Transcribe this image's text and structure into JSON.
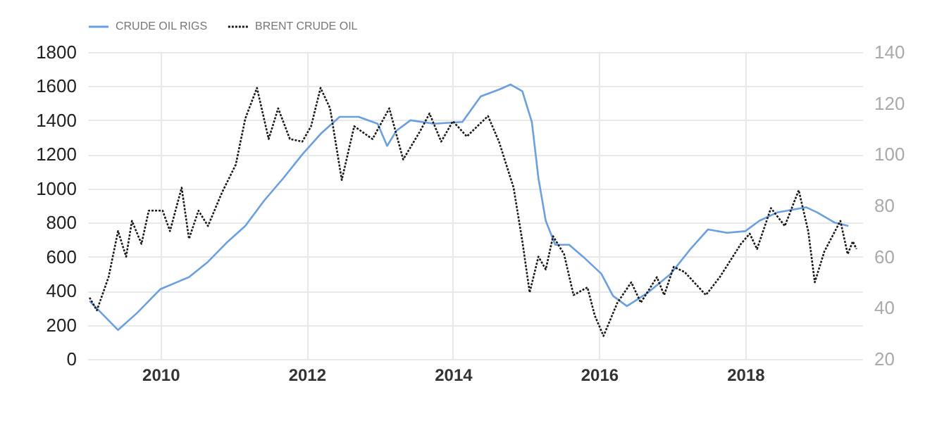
{
  "chart_data": {
    "type": "line",
    "xlim": [
      2009,
      2019.6
    ],
    "xticks": [
      2010,
      2012,
      2014,
      2016,
      2018
    ],
    "ylim": [
      0,
      1800
    ],
    "yticks": [
      0,
      200,
      400,
      600,
      800,
      1000,
      1200,
      1400,
      1600,
      1800
    ],
    "y2lim": [
      20,
      140
    ],
    "y2ticks": [
      20,
      40,
      60,
      80,
      100,
      120,
      140
    ],
    "grid": true,
    "legend": "top left",
    "series": [
      {
        "name": "CRUDE OIL RIGS",
        "color": "#6a9fe0",
        "line_style": "solid",
        "x": [
          2009.03,
          2009.42,
          2009.68,
          2010.0,
          2010.39,
          2010.65,
          2010.9,
          2011.16,
          2011.42,
          2011.68,
          2011.94,
          2012.19,
          2012.45,
          2012.71,
          2012.97,
          2013.1,
          2013.23,
          2013.42,
          2013.74,
          2014.13,
          2014.38,
          2014.63,
          2014.79,
          2014.95,
          2015.08,
          2015.17,
          2015.27,
          2015.4,
          2015.59,
          2015.78,
          2016.03,
          2016.19,
          2016.38,
          2016.67,
          2016.98,
          2017.24,
          2017.49,
          2017.75,
          2018.0,
          2018.19,
          2018.44,
          2018.83,
          2018.98,
          2019.22,
          2019.41
        ],
        "values": [
          340,
          170,
          270,
          410,
          480,
          570,
          680,
          780,
          930,
          1060,
          1200,
          1320,
          1420,
          1420,
          1380,
          1250,
          1340,
          1400,
          1380,
          1390,
          1540,
          1580,
          1610,
          1570,
          1390,
          1060,
          810,
          670,
          670,
          600,
          500,
          370,
          310,
          390,
          500,
          640,
          760,
          740,
          750,
          810,
          860,
          890,
          860,
          800,
          780
        ]
      },
      {
        "name": "BRENT CRUDE OIL",
        "color": "#1a1a1a",
        "axis": "y2",
        "line_style": "dotted",
        "x": [
          2009.03,
          2009.13,
          2009.29,
          2009.42,
          2009.53,
          2009.61,
          2009.74,
          2009.84,
          2010.03,
          2010.13,
          2010.29,
          2010.39,
          2010.52,
          2010.65,
          2010.84,
          2011.03,
          2011.16,
          2011.32,
          2011.48,
          2011.61,
          2011.77,
          2011.94,
          2012.06,
          2012.19,
          2012.32,
          2012.48,
          2012.65,
          2012.9,
          2013.13,
          2013.32,
          2013.55,
          2013.68,
          2013.84,
          2014.0,
          2014.19,
          2014.48,
          2014.63,
          2014.83,
          2014.95,
          2015.05,
          2015.17,
          2015.27,
          2015.37,
          2015.52,
          2015.65,
          2015.84,
          2015.94,
          2016.06,
          2016.25,
          2016.44,
          2016.57,
          2016.79,
          2016.89,
          2017.02,
          2017.17,
          2017.46,
          2017.65,
          2017.94,
          2018.06,
          2018.16,
          2018.35,
          2018.54,
          2018.73,
          2018.86,
          2018.95,
          2019.08,
          2019.3,
          2019.4,
          2019.47,
          2019.52
        ],
        "values": [
          44,
          39,
          52,
          70,
          60,
          74,
          65,
          78,
          78,
          70,
          87,
          67,
          78,
          72,
          85,
          96,
          114,
          126,
          106,
          118,
          106,
          105,
          111,
          126,
          118,
          90,
          111,
          106,
          118,
          98,
          109,
          116,
          105,
          113,
          107,
          115,
          105,
          87,
          66,
          46,
          60,
          55,
          68,
          61,
          45,
          48,
          37,
          29,
          42,
          50,
          42,
          52,
          45,
          56,
          54,
          45,
          52,
          65,
          69,
          63,
          79,
          72,
          86,
          70,
          50,
          62,
          74,
          61,
          66,
          63
        ]
      }
    ]
  }
}
